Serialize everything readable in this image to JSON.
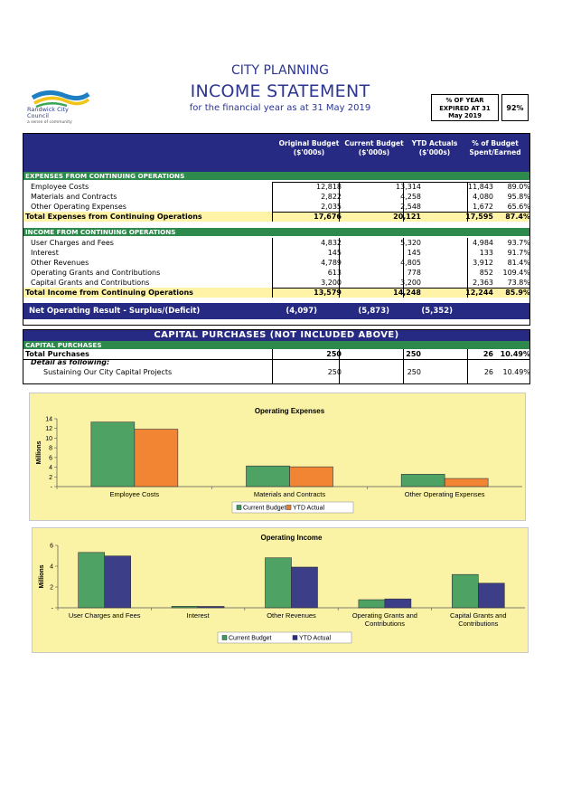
{
  "header": {
    "logo_name": "Randwick City Council",
    "logo_tagline": "a sense of community",
    "department": "CITY PLANNING",
    "title": "INCOME STATEMENT",
    "subtitle": "for the financial year as at 31 May 2019",
    "year_expired_label": "% OF YEAR EXPIRED AT 31 May 2019",
    "year_expired_value": "92%"
  },
  "columns": {
    "original_budget": "Original Budget ($'000s)",
    "current_budget": "Current Budget ($'000s)",
    "ytd_actuals": "YTD Actuals ($'000s)",
    "pct_budget": "% of Budget Spent/Earned"
  },
  "expenses": {
    "section_title": "EXPENSES FROM CONTINUING OPERATIONS",
    "rows": [
      {
        "label": "Employee Costs",
        "original": "12,818",
        "current": "13,314",
        "ytd": "11,843",
        "pct": "89.0%"
      },
      {
        "label": "Materials and Contracts",
        "original": "2,822",
        "current": "4,258",
        "ytd": "4,080",
        "pct": "95.8%"
      },
      {
        "label": "Other Operating Expenses",
        "original": "2,035",
        "current": "2,548",
        "ytd": "1,672",
        "pct": "65.6%"
      }
    ],
    "total": {
      "label": "Total Expenses from Continuing Operations",
      "original": "17,676",
      "current": "20,121",
      "ytd": "17,595",
      "pct": "87.4%"
    }
  },
  "income": {
    "section_title": "INCOME FROM CONTINUING OPERATIONS",
    "rows": [
      {
        "label": "User Charges and Fees",
        "original": "4,832",
        "current": "5,320",
        "ytd": "4,984",
        "pct": "93.7%"
      },
      {
        "label": "Interest",
        "original": "145",
        "current": "145",
        "ytd": "133",
        "pct": "91.7%"
      },
      {
        "label": "Other Revenues",
        "original": "4,789",
        "current": "4,805",
        "ytd": "3,912",
        "pct": "81.4%"
      },
      {
        "label": "Operating Grants and Contributions",
        "original": "613",
        "current": "778",
        "ytd": "852",
        "pct": "109.4%"
      },
      {
        "label": "Capital Grants and Contributions",
        "original": "3,200",
        "current": "3,200",
        "ytd": "2,363",
        "pct": "73.8%"
      }
    ],
    "total": {
      "label": "Total Income from Continuing Operations",
      "original": "13,579",
      "current": "14,248",
      "ytd": "12,244",
      "pct": "85.9%"
    }
  },
  "net": {
    "label": "Net Operating Result - Surplus/(Deficit)",
    "original": "(4,097)",
    "current": "(5,873)",
    "ytd": "(5,352)"
  },
  "capital": {
    "title": "CAPITAL PURCHASES (NOT INCLUDED ABOVE)",
    "section_title": "CAPITAL PURCHASES",
    "total": {
      "label": "Total Purchases",
      "current": "250",
      "alt": "250",
      "ytd": "26",
      "pct": "10.49%"
    },
    "detail_label": "Detail as following:",
    "detail_row": {
      "label": "Sustaining Our City Capital Projects",
      "current": "250",
      "alt": "250",
      "ytd": "26",
      "pct": "10.49%"
    }
  },
  "colors": {
    "navy": "#262a82",
    "green": "#2e8a4c",
    "yellow": "#fff3a8",
    "chart_bg": "#faf3a6",
    "bar_green": "#3e9b5e",
    "bar_orange": "#f07c2a",
    "bar_navy": "#2c2f86"
  },
  "chart_data": [
    {
      "type": "bar",
      "title": "Operating Expenses",
      "ylabel": "Millions",
      "categories": [
        "Employee Costs",
        "Materials and Contracts",
        "Other Operating Expenses"
      ],
      "series": [
        {
          "name": "Current Budget",
          "values": [
            13.314,
            4.258,
            2.548
          ]
        },
        {
          "name": "YTD Actual",
          "values": [
            11.843,
            4.08,
            1.672
          ]
        }
      ],
      "ylim": [
        0,
        14
      ],
      "yticks": [
        "-",
        "2",
        "4",
        "6",
        "8",
        "10",
        "12",
        "14"
      ],
      "legend": "bottom"
    },
    {
      "type": "bar",
      "title": "Operating Income",
      "ylabel": "Millions",
      "categories": [
        "User Charges and Fees",
        "Interest",
        "Other Revenues",
        "Operating Grants and Contributions",
        "Capital Grants and Contributions"
      ],
      "series": [
        {
          "name": "Current Budget",
          "values": [
            5.32,
            0.145,
            4.805,
            0.778,
            3.2
          ]
        },
        {
          "name": "YTD Actual",
          "values": [
            4.984,
            0.133,
            3.912,
            0.852,
            2.363
          ]
        }
      ],
      "ylim": [
        0,
        6
      ],
      "yticks": [
        "-",
        "2",
        "4",
        "6"
      ],
      "legend": "bottom"
    }
  ]
}
